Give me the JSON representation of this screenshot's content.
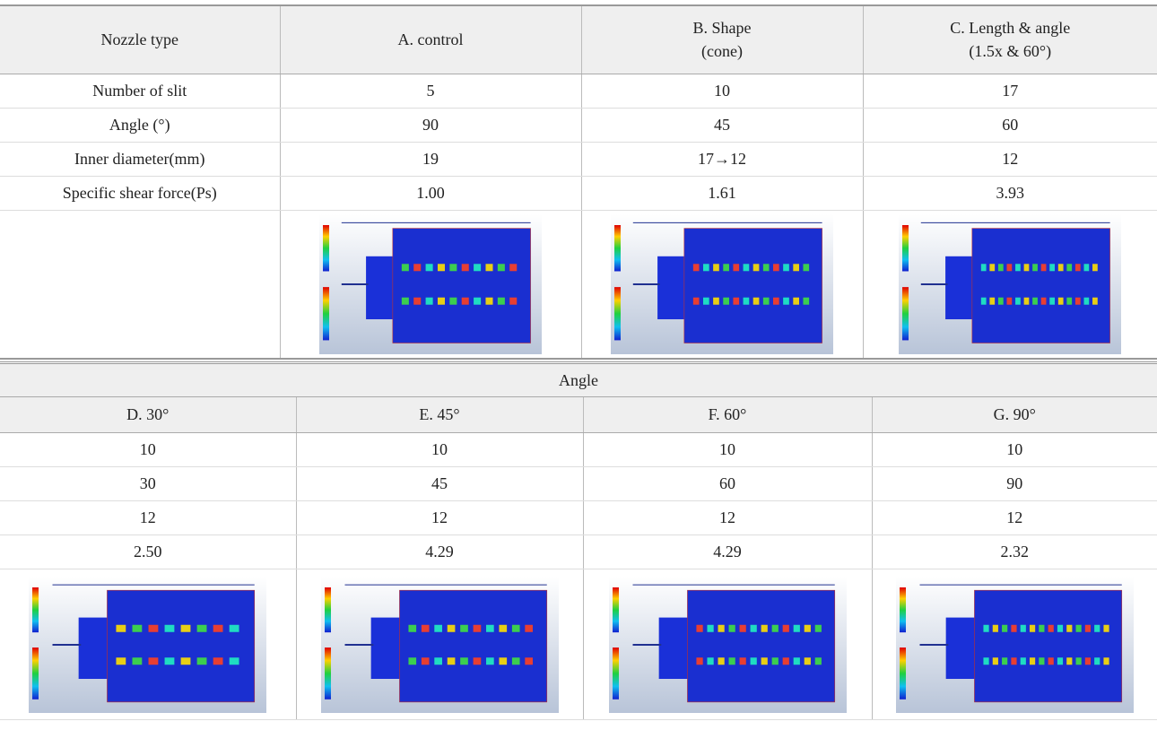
{
  "table1": {
    "header": [
      "Nozzle type",
      "A. control",
      "B. Shape\n(cone)",
      "C. Length & angle\n(1.5x & 60°)"
    ],
    "rows": [
      [
        "Number of slit",
        "5",
        "10",
        "17"
      ],
      [
        "Angle (°)",
        "90",
        "45",
        "60"
      ],
      [
        "Inner diameter(mm)",
        "19",
        "17→12",
        "12"
      ],
      [
        "Specific shear force(Ps)",
        "1.00",
        "1.61",
        "3.93"
      ]
    ]
  },
  "table2": {
    "title": "Angle",
    "header": [
      "D. 30°",
      "E. 45°",
      "F. 60°",
      "G. 90°"
    ],
    "rows": [
      [
        "10",
        "10",
        "10",
        "10"
      ],
      [
        "30",
        "45",
        "60",
        "90"
      ],
      [
        "12",
        "12",
        "12",
        "12"
      ],
      [
        "2.50",
        "4.29",
        "4.29",
        "2.32"
      ]
    ]
  }
}
